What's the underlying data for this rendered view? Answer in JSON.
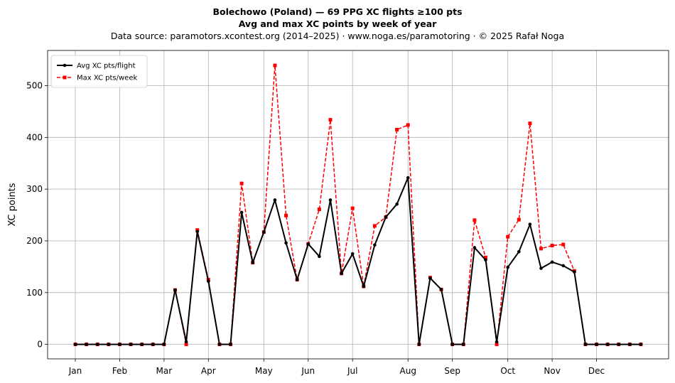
{
  "header": {
    "title": "Bolechowo (Poland)  —  69 PPG XC flights ≥100 pts",
    "subtitle": "Avg and max XC points by week of year",
    "source": "Data source: paramotors.xcontest.org (2014–2025)  ·  www.noga.es/paramotoring  ·  © 2025 Rafał Noga"
  },
  "chart_data": {
    "type": "line",
    "title": "Bolechowo (Poland)  —  69 PPG XC flights ≥100 pts",
    "subtitle": "Avg and max XC points by week of year",
    "xlabel": "",
    "ylabel": "XC points",
    "x_unit": "week of year",
    "x": [
      1,
      2,
      3,
      4,
      5,
      6,
      7,
      8,
      9,
      10,
      11,
      12,
      13,
      14,
      15,
      16,
      17,
      18,
      19,
      20,
      21,
      22,
      23,
      24,
      25,
      26,
      27,
      28,
      29,
      30,
      31,
      32,
      33,
      34,
      35,
      36,
      37,
      38,
      39,
      40,
      41,
      42,
      43,
      44,
      45,
      46,
      47,
      48,
      49,
      50,
      51,
      52
    ],
    "xlim": [
      -1.5,
      54.5
    ],
    "ylim": [
      -28,
      568
    ],
    "yticks": [
      0,
      100,
      200,
      300,
      400,
      500
    ],
    "month_ticks": [
      {
        "label": "Jan",
        "x": 1
      },
      {
        "label": "Feb",
        "x": 5
      },
      {
        "label": "Mar",
        "x": 9
      },
      {
        "label": "Apr",
        "x": 13
      },
      {
        "label": "May",
        "x": 18
      },
      {
        "label": "Jun",
        "x": 22
      },
      {
        "label": "Jul",
        "x": 26
      },
      {
        "label": "Aug",
        "x": 31
      },
      {
        "label": "Sep",
        "x": 35
      },
      {
        "label": "Oct",
        "x": 40
      },
      {
        "label": "Nov",
        "x": 44
      },
      {
        "label": "Dec",
        "x": 48
      }
    ],
    "grid": true,
    "legend_position": "top-left",
    "series": [
      {
        "name": "Avg XC pts/flight",
        "color": "#000000",
        "style": "solid",
        "marker": "circle",
        "values": [
          0,
          0,
          0,
          0,
          0,
          0,
          0,
          0,
          0,
          105,
          5,
          218,
          122,
          0,
          0,
          255,
          158,
          217,
          279,
          196,
          125,
          194,
          170,
          279,
          137,
          175,
          112,
          192,
          246,
          271,
          322,
          0,
          128,
          106,
          0,
          0,
          187,
          163,
          5,
          149,
          179,
          232,
          147,
          159,
          152,
          140,
          0,
          0,
          0,
          0,
          0,
          0
        ]
      },
      {
        "name": "Max XC pts/week",
        "color": "#ff0000",
        "style": "dashed",
        "marker": "square",
        "values": [
          0,
          0,
          0,
          0,
          0,
          0,
          0,
          0,
          0,
          105,
          0,
          221,
          125,
          0,
          0,
          311,
          158,
          217,
          539,
          249,
          125,
          194,
          261,
          434,
          137,
          263,
          112,
          229,
          246,
          415,
          424,
          0,
          129,
          106,
          0,
          0,
          240,
          168,
          0,
          208,
          241,
          427,
          185,
          191,
          193,
          142,
          0,
          0,
          0,
          0,
          0,
          0
        ]
      }
    ]
  }
}
